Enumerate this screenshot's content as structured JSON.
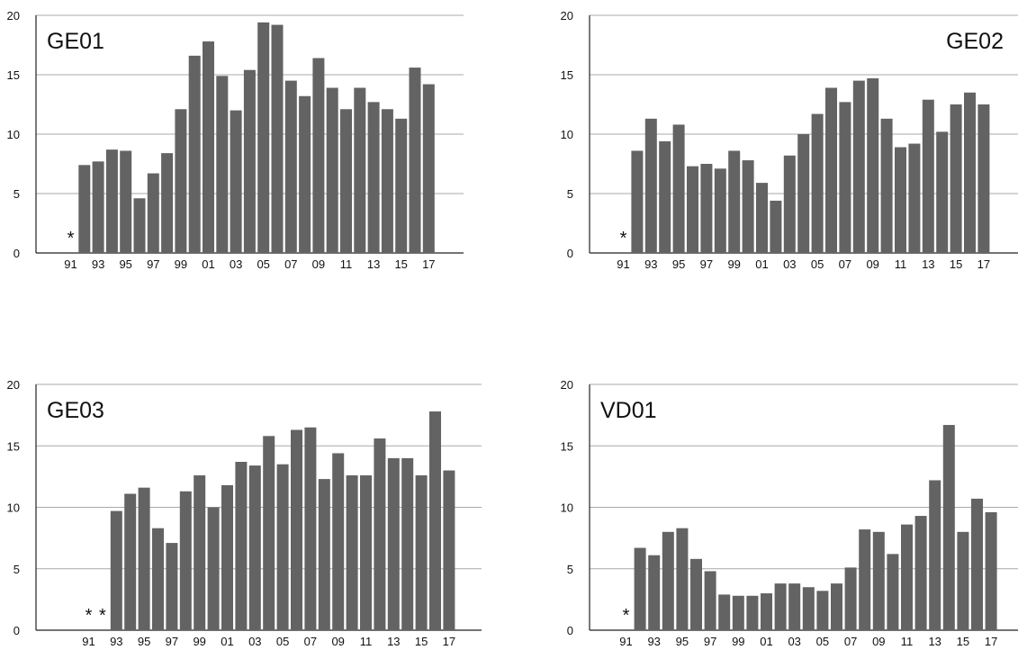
{
  "chart_data": [
    {
      "type": "bar",
      "title": "GE01",
      "title_position": "top-left",
      "xlabel": "",
      "ylabel": "",
      "ylim": [
        0,
        20
      ],
      "yticks": [
        "0",
        "5",
        "10",
        "15",
        "20"
      ],
      "grid": true,
      "bar_color": "#636363",
      "categories": [
        "91",
        "92",
        "93",
        "94",
        "95",
        "96",
        "97",
        "98",
        "99",
        "00",
        "01",
        "02",
        "03",
        "04",
        "05",
        "06",
        "07",
        "08",
        "09",
        "10",
        "11",
        "12",
        "13",
        "14",
        "15",
        "16",
        "17"
      ],
      "xtick_labels": [
        "91",
        "93",
        "95",
        "97",
        "99",
        "01",
        "03",
        "05",
        "07",
        "09",
        "11",
        "13",
        "15",
        "17"
      ],
      "values": [
        null,
        7.4,
        7.7,
        8.7,
        8.6,
        4.6,
        6.7,
        8.4,
        12.1,
        16.6,
        17.8,
        14.9,
        12.0,
        15.4,
        19.4,
        19.2,
        14.5,
        13.2,
        16.4,
        13.9,
        12.1,
        13.9,
        12.7,
        12.1,
        11.3,
        15.6,
        14.2
      ],
      "missing_marker": "*"
    },
    {
      "type": "bar",
      "title": "GE02",
      "title_position": "top-right",
      "xlabel": "",
      "ylabel": "",
      "ylim": [
        0,
        20
      ],
      "yticks": [
        "0",
        "5",
        "10",
        "15",
        "20"
      ],
      "grid": true,
      "bar_color": "#636363",
      "categories": [
        "91",
        "92",
        "93",
        "94",
        "95",
        "96",
        "97",
        "98",
        "99",
        "00",
        "01",
        "02",
        "03",
        "04",
        "05",
        "06",
        "07",
        "08",
        "09",
        "10",
        "11",
        "12",
        "13",
        "14",
        "15",
        "16",
        "17"
      ],
      "xtick_labels": [
        "91",
        "93",
        "95",
        "97",
        "99",
        "01",
        "03",
        "05",
        "07",
        "09",
        "11",
        "13",
        "15",
        "17"
      ],
      "values": [
        null,
        8.6,
        11.3,
        9.4,
        10.8,
        7.3,
        7.5,
        7.1,
        8.6,
        7.8,
        5.9,
        4.4,
        8.2,
        10.0,
        11.7,
        13.9,
        12.7,
        14.5,
        14.7,
        11.3,
        8.9,
        9.2,
        12.9,
        10.2,
        12.5,
        13.5,
        12.5
      ],
      "missing_marker": "*"
    },
    {
      "type": "bar",
      "title": "GE03",
      "title_position": "top-left",
      "xlabel": "",
      "ylabel": "",
      "ylim": [
        0,
        20
      ],
      "yticks": [
        "0",
        "5",
        "10",
        "15",
        "20"
      ],
      "grid": true,
      "bar_color": "#636363",
      "categories": [
        "91",
        "92",
        "93",
        "94",
        "95",
        "96",
        "97",
        "98",
        "99",
        "00",
        "01",
        "02",
        "03",
        "04",
        "05",
        "06",
        "07",
        "08",
        "09",
        "10",
        "11",
        "12",
        "13",
        "14",
        "15",
        "16",
        "17"
      ],
      "xtick_labels": [
        "91",
        "93",
        "95",
        "97",
        "99",
        "01",
        "03",
        "05",
        "07",
        "09",
        "11",
        "13",
        "15",
        "17"
      ],
      "values": [
        null,
        null,
        9.7,
        11.1,
        11.6,
        8.3,
        7.1,
        11.3,
        12.6,
        10.0,
        11.8,
        13.7,
        13.4,
        15.8,
        13.5,
        16.3,
        16.5,
        12.3,
        14.4,
        12.6,
        12.6,
        15.6,
        14.0,
        14.0,
        12.6,
        17.8,
        13.0
      ],
      "missing_marker": "*"
    },
    {
      "type": "bar",
      "title": "VD01",
      "title_position": "top-left",
      "xlabel": "",
      "ylabel": "",
      "ylim": [
        0,
        20
      ],
      "yticks": [
        "0",
        "5",
        "10",
        "15",
        "20"
      ],
      "grid": true,
      "bar_color": "#636363",
      "categories": [
        "91",
        "92",
        "93",
        "94",
        "95",
        "96",
        "97",
        "98",
        "99",
        "00",
        "01",
        "02",
        "03",
        "04",
        "05",
        "06",
        "07",
        "08",
        "09",
        "10",
        "11",
        "12",
        "13",
        "14",
        "15",
        "16",
        "17"
      ],
      "xtick_labels": [
        "91",
        "93",
        "95",
        "97",
        "99",
        "01",
        "03",
        "05",
        "07",
        "09",
        "11",
        "13",
        "15",
        "17"
      ],
      "values": [
        null,
        6.7,
        6.1,
        8.0,
        8.3,
        5.8,
        4.8,
        2.9,
        2.8,
        2.8,
        3.0,
        3.8,
        3.8,
        3.5,
        3.2,
        3.8,
        5.1,
        8.2,
        8.0,
        6.2,
        8.6,
        9.3,
        12.2,
        16.7,
        8.0,
        10.7,
        9.6
      ],
      "missing_marker": "*"
    }
  ]
}
